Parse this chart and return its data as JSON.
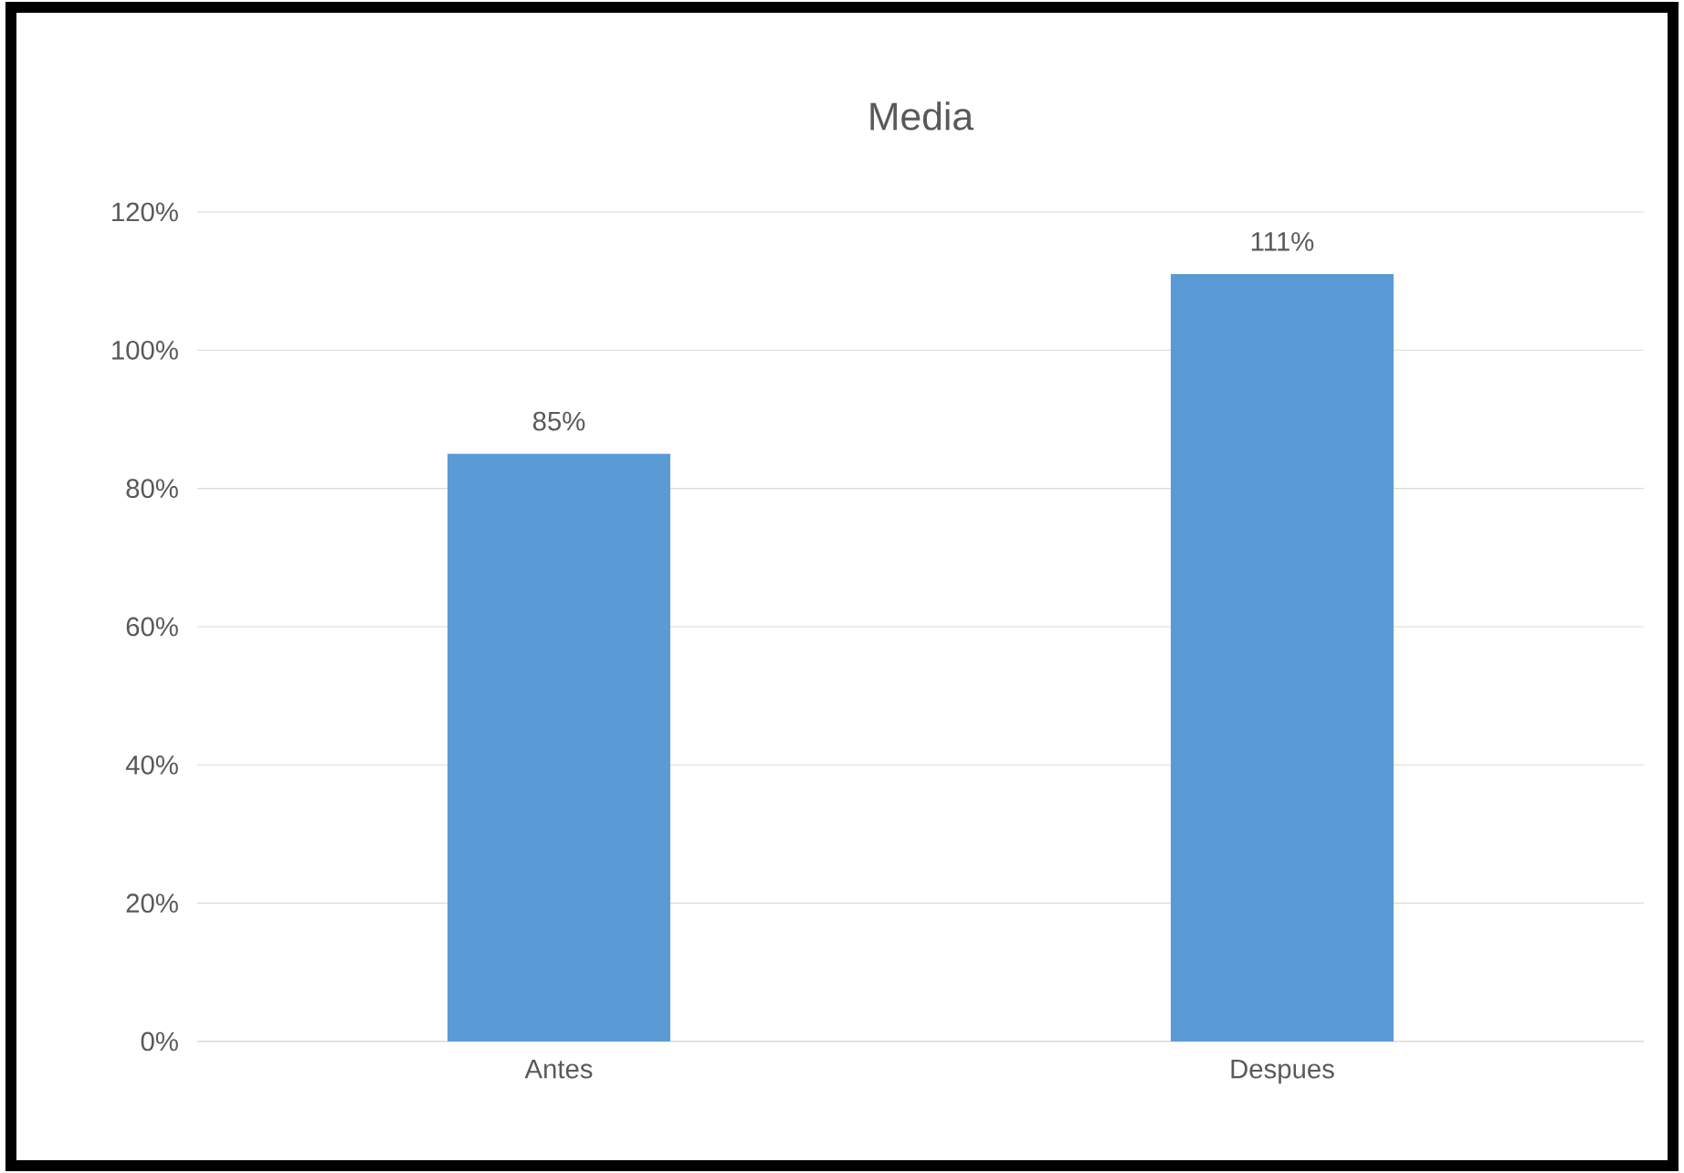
{
  "chart_data": {
    "type": "bar",
    "title": "Media",
    "categories": [
      "Antes",
      "Despues"
    ],
    "values": [
      85,
      111
    ],
    "color": "#5b9bd5",
    "value_labels": [
      "85%",
      "111%"
    ],
    "ylim": [
      0,
      120
    ],
    "yticks": [
      {
        "value": 0,
        "label": "0%"
      },
      {
        "value": 20,
        "label": "20%"
      },
      {
        "value": 40,
        "label": "40%"
      },
      {
        "value": 60,
        "label": "60%"
      },
      {
        "value": 80,
        "label": "80%"
      },
      {
        "value": 100,
        "label": "100%"
      },
      {
        "value": 120,
        "label": "120%"
      }
    ],
    "grid": "y"
  }
}
